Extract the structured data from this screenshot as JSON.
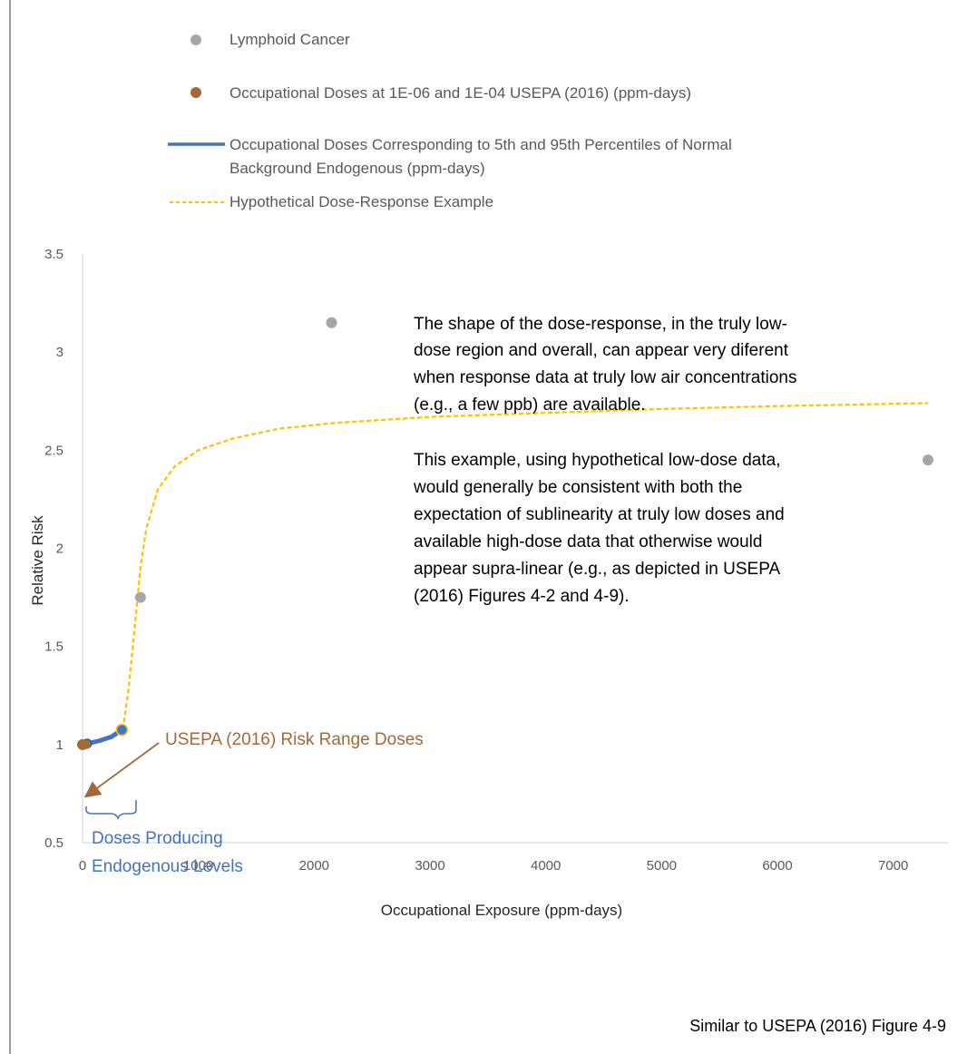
{
  "chart_data": {
    "type": "scatter",
    "xlabel": "Occupational Exposure (ppm-days)",
    "ylabel": "Relative Risk",
    "xlim": [
      0,
      7300
    ],
    "ylim": [
      0.5,
      3.5
    ],
    "x_ticks": [
      "0",
      "1000",
      "2000",
      "3000",
      "4000",
      "5000",
      "6000",
      "7000"
    ],
    "y_ticks": [
      "0.5",
      "1",
      "1.5",
      "2",
      "2.5",
      "3",
      "3.5"
    ],
    "grid": false,
    "legend_position": "top",
    "series": [
      {
        "name": "Lymphoid Cancer",
        "kind": "points",
        "color": "#a6a6a6",
        "points": [
          [
            500,
            1.75
          ],
          [
            2150,
            3.15
          ],
          [
            7300,
            2.45
          ]
        ]
      },
      {
        "name": "Occupational Doses at 1E-06 and 1E-04 USEPA (2016) (ppm-days)",
        "kind": "points",
        "color": "#a36a38",
        "points": [
          [
            0,
            1.0
          ],
          [
            30,
            1.0
          ]
        ]
      },
      {
        "name": "Occupational Doses Corresponding to 5th and 95th Percentiles of Normal Background Endogenous (ppm-days)",
        "name_lines": [
          "Occupational Doses Corresponding to 5th and 95th Percentiles of Normal",
          "Background Endogenous (ppm-days)"
        ],
        "kind": "line",
        "color": "#4472c4",
        "points": [
          [
            40,
            1.005
          ],
          [
            150,
            1.02
          ],
          [
            250,
            1.04
          ],
          [
            340,
            1.075
          ]
        ]
      },
      {
        "name": "Hypothetical Dose-Response Example",
        "kind": "dashed-line",
        "color": "#ffc000",
        "points": [
          [
            0,
            1.0
          ],
          [
            100,
            1.01
          ],
          [
            200,
            1.03
          ],
          [
            300,
            1.06
          ],
          [
            350,
            1.08
          ],
          [
            400,
            1.3
          ],
          [
            450,
            1.6
          ],
          [
            500,
            1.9
          ],
          [
            550,
            2.1
          ],
          [
            650,
            2.3
          ],
          [
            800,
            2.42
          ],
          [
            1000,
            2.5
          ],
          [
            1300,
            2.56
          ],
          [
            1700,
            2.61
          ],
          [
            2200,
            2.64
          ],
          [
            3000,
            2.67
          ],
          [
            4000,
            2.69
          ],
          [
            5000,
            2.71
          ],
          [
            6000,
            2.725
          ],
          [
            7300,
            2.74
          ]
        ]
      }
    ],
    "annotations": {
      "risk_range_label": "USEPA (2016) Risk Range Doses",
      "endogenous_label": [
        "Doses Producing",
        "Endogenous Levels"
      ],
      "paragraph1": [
        "The shape of the dose-response, in the truly low-",
        "dose region and overall, can appear very diferent",
        "when response data at truly low air concentrations",
        "(e.g., a few ppb) are available."
      ],
      "paragraph2": [
        "This example, using hypothetical low-dose data,",
        "would generally be consistent with both the",
        "expectation of sublinearity at truly low doses and",
        "available high-dose data that otherwise would",
        "appear supra-linear (e.g., as depicted in USEPA",
        "(2016) Figures 4-2 and 4-9)."
      ]
    },
    "footer": "Similar to USEPA (2016) Figure 4-9"
  }
}
